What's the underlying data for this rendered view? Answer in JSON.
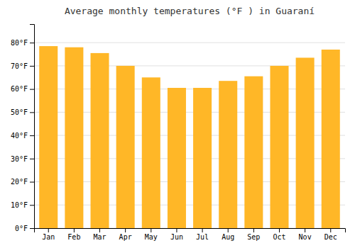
{
  "chart_data": {
    "type": "bar",
    "title": "Average monthly temperatures (°F ) in Guaraní",
    "categories": [
      "Jan",
      "Feb",
      "Mar",
      "Apr",
      "May",
      "Jun",
      "Jul",
      "Aug",
      "Sep",
      "Oct",
      "Nov",
      "Dec"
    ],
    "values": [
      78.5,
      78.0,
      75.5,
      70.0,
      65.0,
      60.5,
      60.5,
      63.5,
      65.5,
      70.0,
      73.5,
      77.0
    ],
    "color": "#FFB727",
    "ylim": [
      0,
      88
    ],
    "yticks": [
      {
        "value": 0,
        "label": "0°F"
      },
      {
        "value": 10,
        "label": "10°F"
      },
      {
        "value": 20,
        "label": "20°F"
      },
      {
        "value": 30,
        "label": "30°F"
      },
      {
        "value": 40,
        "label": "40°F"
      },
      {
        "value": 50,
        "label": "50°F"
      },
      {
        "value": 60,
        "label": "60°F"
      },
      {
        "value": 70,
        "label": "70°F"
      },
      {
        "value": 80,
        "label": "80°F"
      }
    ],
    "grid": true
  }
}
